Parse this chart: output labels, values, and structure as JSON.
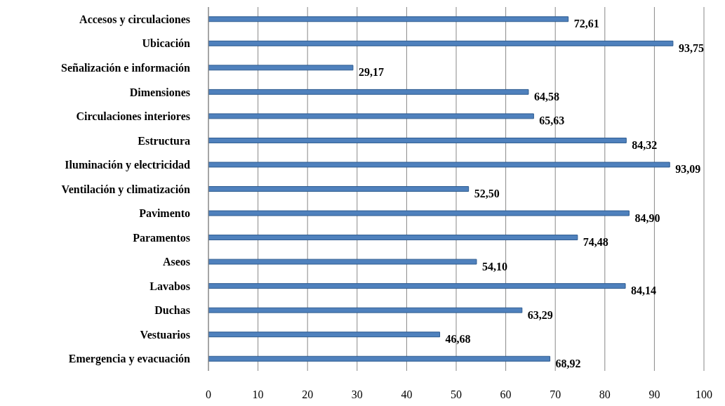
{
  "chart_data": {
    "type": "bar",
    "orientation": "horizontal",
    "categories": [
      "Accesos y circulaciones",
      "Ubicación",
      "Señalización e información",
      "Dimensiones",
      "Circulaciones interiores",
      "Estructura",
      "Iluminación y electricidad",
      "Ventilación y climatización",
      "Pavimento",
      "Paramentos",
      "Aseos",
      "Lavabos",
      "Duchas",
      "Vestuarios",
      "Emergencia y evacuación"
    ],
    "values": [
      72.61,
      93.75,
      29.17,
      64.58,
      65.63,
      84.32,
      93.09,
      52.5,
      84.9,
      74.48,
      54.1,
      84.14,
      63.29,
      46.68,
      68.92
    ],
    "value_labels": [
      "72,61",
      "93,75",
      "29,17",
      "64,58",
      "65,63",
      "84,32",
      "93,09",
      "52,50",
      "84,90",
      "74,48",
      "54,10",
      "84,14",
      "63,29",
      "46,68",
      "68,92"
    ],
    "color": "#4f81bd",
    "xlim": [
      0,
      100
    ],
    "xticks": [
      0,
      10,
      20,
      30,
      40,
      50,
      60,
      70,
      80,
      90,
      100
    ],
    "grid": "x"
  }
}
